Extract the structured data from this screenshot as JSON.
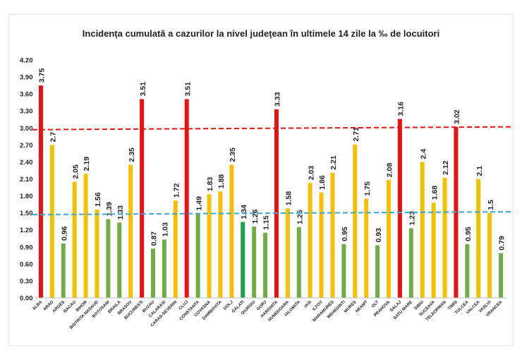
{
  "chart_data": {
    "type": "bar",
    "title": "Incidența cumulată a cazurilor la nivel județean în ultimele 14 zile la ‰ de locuitori",
    "xlabel": "",
    "ylabel": "",
    "ylim": [
      0,
      4.2
    ],
    "yticks": [
      "0.00",
      "0.30",
      "0.60",
      "0.90",
      "1.20",
      "1.50",
      "1.80",
      "2.10",
      "2.40",
      "2.70",
      "3.00",
      "3.30",
      "3.60",
      "3.90",
      "4.20"
    ],
    "grid": false,
    "categories": [
      "ALBA",
      "ARAD",
      "ARGES",
      "BACAU",
      "BIHOR",
      "BISTRITA NASAUD",
      "BOTOSANI",
      "BRAILA",
      "BRASOV",
      "BUCURESTI",
      "BUZAU",
      "CALARASI",
      "CARAS-SEVERIN",
      "CLUJ",
      "CONSTANTA",
      "COVASNA",
      "DAMBOVITA",
      "DOLJ",
      "GALATI",
      "GIURGIU",
      "GORJ",
      "HARGHITA",
      "HUNEDOARA",
      "IALOMITA",
      "IASI",
      "ILFOV",
      "MARAMURES",
      "MEHEDINTI",
      "MURES",
      "NEAMT",
      "OLT",
      "PRAHOVA",
      "SALAJ",
      "SATU MARE",
      "SIBIU",
      "SUCEAVA",
      "TELEORMAN",
      "TIMIS",
      "TULCEA",
      "VALCEA",
      "VASLUI",
      "VRANCEA"
    ],
    "values": [
      3.75,
      2.7,
      0.96,
      2.05,
      2.19,
      1.56,
      1.39,
      1.33,
      2.35,
      3.51,
      0.87,
      1.03,
      1.72,
      3.51,
      1.49,
      1.83,
      1.88,
      2.35,
      1.34,
      1.26,
      1.15,
      3.33,
      1.58,
      1.25,
      2.03,
      1.86,
      2.21,
      0.95,
      2.71,
      1.75,
      0.93,
      2.08,
      3.16,
      1.23,
      2.4,
      1.68,
      2.12,
      3.02,
      0.95,
      2.1,
      1.5,
      0.79
    ],
    "value_labels": [
      "3.75",
      "2.7",
      "0.96",
      "2.05",
      "2.19",
      "1.56",
      "1.39",
      "1.33",
      "2.35",
      "3.51",
      "0.87",
      "1.03",
      "1.72",
      "3.51",
      "1.49",
      "1.83",
      "1.88",
      "2.35",
      "1.34",
      "1.26",
      "1.15",
      "3.33",
      "1.58",
      "1.25",
      "2.03",
      "1.86",
      "2.21",
      "0.95",
      "2.71",
      "1.75",
      "0.93",
      "2.08",
      "3.16",
      "1.23",
      "2.4",
      "1.68",
      "2.12",
      "3.02",
      "0.95",
      "2.1",
      "1.5",
      "0.79"
    ],
    "bar_colors": [
      "#e81212",
      "#f5c000",
      "#70ad47",
      "#f5c000",
      "#f5c000",
      "#f5c000",
      "#70ad47",
      "#70ad47",
      "#f5c000",
      "#e81212",
      "#70ad47",
      "#70ad47",
      "#f5c000",
      "#e81212",
      "#70ad47",
      "#f5c000",
      "#f5c000",
      "#f5c000",
      "#19a64a",
      "#70ad47",
      "#70ad47",
      "#e81212",
      "#f5c000",
      "#70ad47",
      "#f5c000",
      "#f5c000",
      "#f5c000",
      "#70ad47",
      "#f5c000",
      "#f5c000",
      "#70ad47",
      "#f5c000",
      "#e81212",
      "#70ad47",
      "#f5c000",
      "#f5c000",
      "#f5c000",
      "#e81212",
      "#70ad47",
      "#f5c000",
      "#f5c000",
      "#70ad47"
    ],
    "threshold_lines": [
      {
        "value_left": 2.97,
        "value_right": 3.02,
        "color": "#e81212",
        "style": "dashed"
      },
      {
        "value_left": 1.47,
        "value_right": 1.52,
        "color": "#3aa6d6",
        "style": "dashed"
      }
    ]
  }
}
